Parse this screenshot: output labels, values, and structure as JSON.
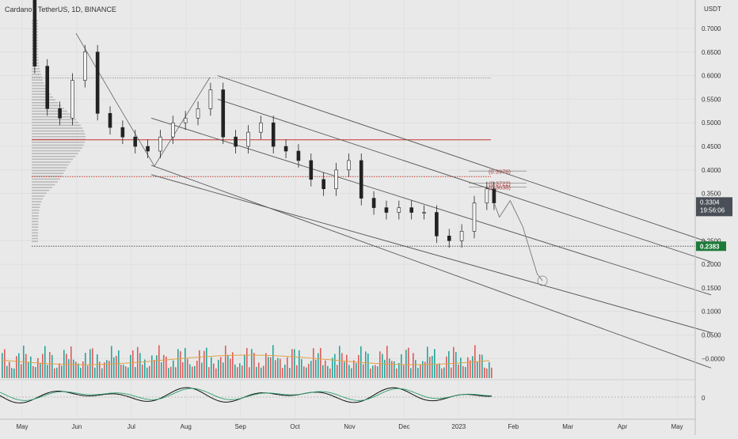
{
  "header": {
    "title": "Cardano / TetherUS, 1D, BINANCE"
  },
  "chart_data": {
    "type": "candlestick",
    "title": "Cardano / TetherUS, 1D, BINANCE",
    "symbol": "ADAUSDT",
    "exchange": "BINANCE",
    "interval": "1D",
    "currency_label": "USDT",
    "y_range": [
      -0.03,
      0.79
    ],
    "y_ticks": [
      "0.7000",
      "0.6500",
      "0.6000",
      "0.5500",
      "0.5000",
      "0.4500",
      "0.4000",
      "0.3500",
      "0.2500",
      "0.2000",
      "0.1500",
      "0.1000",
      "0.0500",
      "−0.0000"
    ],
    "x_ticks": [
      "May",
      "Jun",
      "Jul",
      "Aug",
      "Sep",
      "Oct",
      "Nov",
      "Dec",
      "2023",
      "Feb",
      "Mar",
      "Apr",
      "May"
    ],
    "price_series": [
      {
        "date": "2022-05-01",
        "close": 0.78
      },
      {
        "date": "2022-05-08",
        "close": 0.62
      },
      {
        "date": "2022-05-15",
        "close": 0.53
      },
      {
        "date": "2022-05-22",
        "close": 0.51
      },
      {
        "date": "2022-05-29",
        "close": 0.59
      },
      {
        "date": "2022-06-05",
        "close": 0.65
      },
      {
        "date": "2022-06-12",
        "close": 0.52
      },
      {
        "date": "2022-06-19",
        "close": 0.49
      },
      {
        "date": "2022-06-26",
        "close": 0.47
      },
      {
        "date": "2022-07-03",
        "close": 0.45
      },
      {
        "date": "2022-07-10",
        "close": 0.44
      },
      {
        "date": "2022-07-17",
        "close": 0.47
      },
      {
        "date": "2022-07-24",
        "close": 0.5
      },
      {
        "date": "2022-07-31",
        "close": 0.51
      },
      {
        "date": "2022-08-07",
        "close": 0.53
      },
      {
        "date": "2022-08-14",
        "close": 0.57
      },
      {
        "date": "2022-08-21",
        "close": 0.47
      },
      {
        "date": "2022-08-28",
        "close": 0.45
      },
      {
        "date": "2022-09-04",
        "close": 0.48
      },
      {
        "date": "2022-09-11",
        "close": 0.5
      },
      {
        "date": "2022-09-18",
        "close": 0.45
      },
      {
        "date": "2022-09-25",
        "close": 0.44
      },
      {
        "date": "2022-10-02",
        "close": 0.42
      },
      {
        "date": "2022-10-09",
        "close": 0.38
      },
      {
        "date": "2022-10-16",
        "close": 0.36
      },
      {
        "date": "2022-10-23",
        "close": 0.4
      },
      {
        "date": "2022-10-30",
        "close": 0.42
      },
      {
        "date": "2022-11-06",
        "close": 0.34
      },
      {
        "date": "2022-11-13",
        "close": 0.32
      },
      {
        "date": "2022-11-20",
        "close": 0.31
      },
      {
        "date": "2022-11-27",
        "close": 0.32
      },
      {
        "date": "2022-12-04",
        "close": 0.31
      },
      {
        "date": "2022-12-11",
        "close": 0.31
      },
      {
        "date": "2022-12-18",
        "close": 0.26
      },
      {
        "date": "2022-12-25",
        "close": 0.25
      },
      {
        "date": "2023-01-01",
        "close": 0.27
      },
      {
        "date": "2023-01-08",
        "close": 0.33
      },
      {
        "date": "2023-01-15",
        "close": 0.36
      },
      {
        "date": "2023-01-19",
        "close": 0.33
      }
    ],
    "horizontal_levels": [
      {
        "value": 0.595,
        "color": "#9a9a9a",
        "style": "dotted"
      },
      {
        "value": 0.464,
        "color": "#c0392b",
        "style": "solid"
      },
      {
        "value": 0.386,
        "color": "#c0392b",
        "style": "dotted"
      },
      {
        "value": 0.2383,
        "color": "#555555",
        "style": "dotted"
      }
    ],
    "channel_lines": [
      {
        "from": {
          "date": "2022-08-18",
          "value": 0.6
        },
        "to": {
          "date": "2023-05-20",
          "value": 0.245
        }
      },
      {
        "from": {
          "date": "2022-08-18",
          "value": 0.55
        },
        "to": {
          "date": "2023-05-20",
          "value": 0.205
        }
      },
      {
        "from": {
          "date": "2022-07-12",
          "value": 0.51
        },
        "to": {
          "date": "2023-05-20",
          "value": 0.135
        }
      },
      {
        "from": {
          "date": "2022-07-12",
          "value": 0.39
        },
        "to": {
          "date": "2023-05-20",
          "value": 0.055
        }
      },
      {
        "from": {
          "date": "2022-07-12",
          "value": 0.41
        },
        "to": {
          "date": "2023-05-20",
          "value": -0.02
        }
      }
    ],
    "annotations": [
      "(0.3976)",
      "(0.3722)",
      "(0.3638)"
    ],
    "annotation_values": [
      0.3976,
      0.3722,
      0.3638
    ],
    "last_price": {
      "value": "0.3304",
      "countdown": "19:56:06",
      "color": "#4a4f57"
    },
    "support_label": {
      "value": "0.2383",
      "color": "#1e7a3a"
    },
    "projection_path": [
      {
        "date": "2023-01-19",
        "value": 0.33
      },
      {
        "date": "2023-01-22",
        "value": 0.3
      },
      {
        "date": "2023-01-28",
        "value": 0.335
      },
      {
        "date": "2023-02-04",
        "value": 0.28
      },
      {
        "date": "2023-02-12",
        "value": 0.18
      },
      {
        "date": "2023-02-15",
        "value": 0.165
      }
    ],
    "volume_ma_color": "#e0a34a",
    "oscillator": {
      "zero_label": "0",
      "line_color": "#111111",
      "signal_color": "#2e9e6e"
    },
    "colors": {
      "up": "#26a69a",
      "down": "#e05a5a",
      "wick": "#222222",
      "background": "#e9e9e9"
    }
  }
}
